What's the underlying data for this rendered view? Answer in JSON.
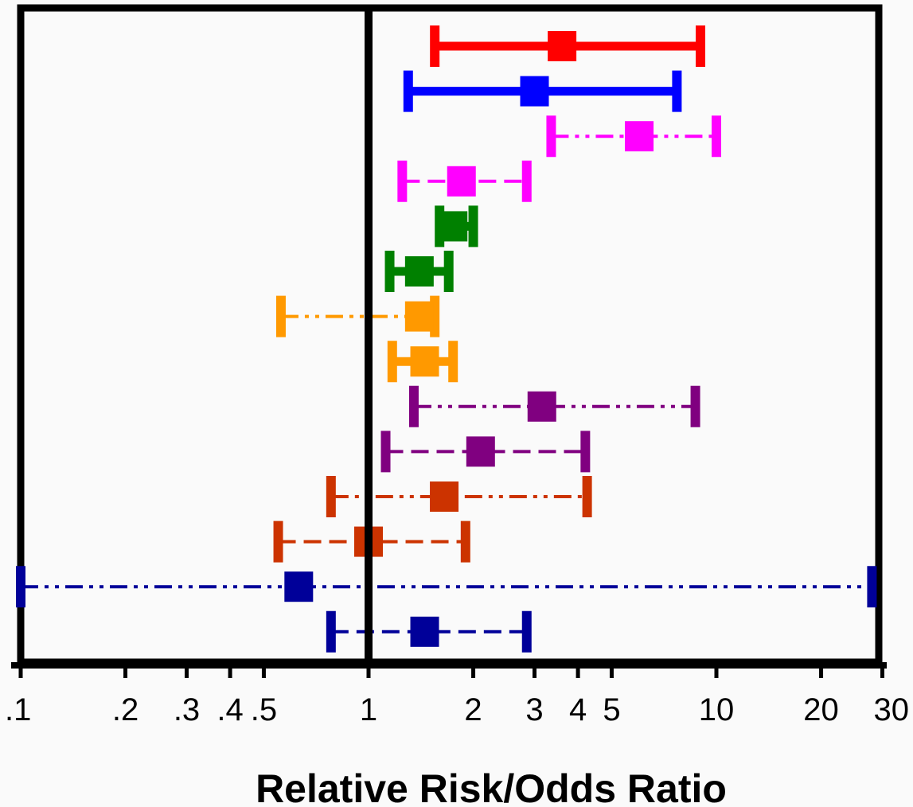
{
  "chart_data": {
    "type": "forest",
    "xlabel": "Relative Risk/Odds Ratio",
    "xscale": "log",
    "xlim": [
      0.1,
      30
    ],
    "reference_line": 1,
    "ticks": [
      {
        "value": 0.1,
        "label": ".1"
      },
      {
        "value": 0.2,
        "label": ".2"
      },
      {
        "value": 0.3,
        "label": ".3"
      },
      {
        "value": 0.4,
        "label": ".4"
      },
      {
        "value": 0.5,
        "label": ".5"
      },
      {
        "value": 1,
        "label": "1"
      },
      {
        "value": 2,
        "label": "2"
      },
      {
        "value": 3,
        "label": "3"
      },
      {
        "value": 4,
        "label": "4"
      },
      {
        "value": 5,
        "label": "5"
      },
      {
        "value": 10,
        "label": "10"
      },
      {
        "value": 20,
        "label": "20"
      },
      {
        "value": 30,
        "label": "30"
      }
    ],
    "rows": [
      {
        "estimate": 3.6,
        "lower": 1.55,
        "upper": 9.0,
        "color": "#ff0000",
        "line_style": "solid"
      },
      {
        "estimate": 3.0,
        "lower": 1.3,
        "upper": 7.7,
        "color": "#0000ff",
        "line_style": "solid"
      },
      {
        "estimate": 6.0,
        "lower": 3.35,
        "upper": 10.0,
        "color": "#ff00ff",
        "line_style": "dash-dot-dot"
      },
      {
        "estimate": 1.85,
        "lower": 1.25,
        "upper": 2.85,
        "color": "#ff00ff",
        "line_style": "dashed"
      },
      {
        "estimate": 1.75,
        "lower": 1.6,
        "upper": 2.0,
        "color": "#008000",
        "line_style": "solid"
      },
      {
        "estimate": 1.4,
        "lower": 1.15,
        "upper": 1.7,
        "color": "#008000",
        "line_style": "solid"
      },
      {
        "estimate": 1.4,
        "lower": 0.56,
        "upper": 1.55,
        "color": "#ff9900",
        "line_style": "dash-dot-dot"
      },
      {
        "estimate": 1.45,
        "lower": 1.17,
        "upper": 1.75,
        "color": "#ff9900",
        "line_style": "solid"
      },
      {
        "estimate": 3.15,
        "lower": 1.35,
        "upper": 8.7,
        "color": "#800080",
        "line_style": "dash-dot-dot"
      },
      {
        "estimate": 2.1,
        "lower": 1.12,
        "upper": 4.2,
        "color": "#800080",
        "line_style": "dashed"
      },
      {
        "estimate": 1.65,
        "lower": 0.78,
        "upper": 4.25,
        "color": "#cc3300",
        "line_style": "dash-dot-dot"
      },
      {
        "estimate": 1.0,
        "lower": 0.55,
        "upper": 1.9,
        "color": "#cc3300",
        "line_style": "dashed"
      },
      {
        "estimate": 0.63,
        "lower": 0.1,
        "upper": 28.0,
        "color": "#000099",
        "line_style": "dash-dot-dot"
      },
      {
        "estimate": 1.45,
        "lower": 0.78,
        "upper": 2.85,
        "color": "#000099",
        "line_style": "dashed"
      }
    ]
  }
}
